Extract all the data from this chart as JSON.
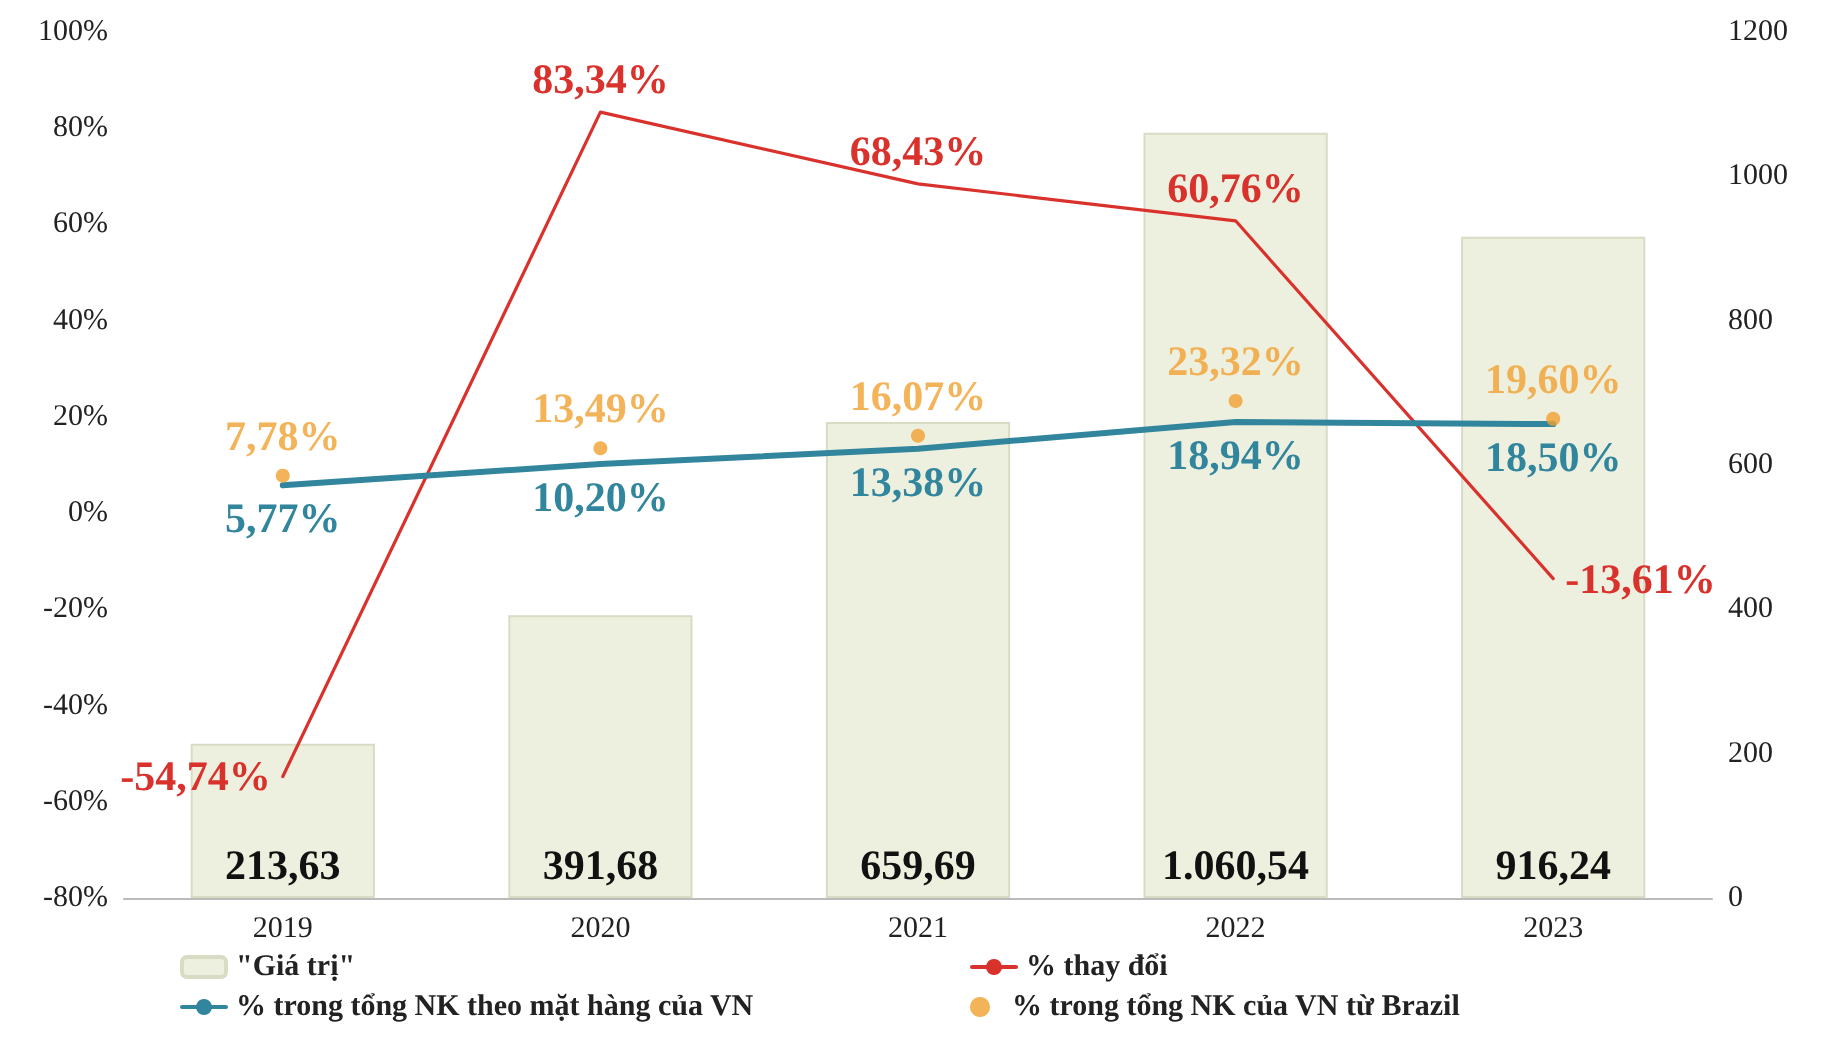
{
  "chart_data": {
    "type": "bar",
    "categories": [
      "2019",
      "2020",
      "2021",
      "2022",
      "2023"
    ],
    "series": [
      {
        "name": "\"Giá trị\"",
        "axis": "y2",
        "color": "#eef0df",
        "values": [
          213.63,
          391.68,
          659.69,
          1060.54,
          916.24
        ],
        "value_labels": [
          "213,63",
          "391,68",
          "659,69",
          "1.060,54",
          "916,24"
        ],
        "marker": "none"
      },
      {
        "name": "% thay đổi",
        "type": "line",
        "axis": "y",
        "color": "#d9312c",
        "values": [
          -54.74,
          83.34,
          68.43,
          60.76,
          -13.61
        ],
        "value_labels": [
          "-54,74%",
          "83,34%",
          "68,43%",
          "60,76%",
          "-13,61%"
        ],
        "marker": "none"
      },
      {
        "name": "% trong tổng NK theo mặt hàng của VN",
        "type": "line",
        "axis": "y",
        "color": "#31859c",
        "values": [
          5.77,
          10.2,
          13.38,
          18.94,
          18.5
        ],
        "value_labels": [
          "5,77%",
          "10,20%",
          "13,38%",
          "18,94%",
          "18,50%"
        ],
        "marker": "none"
      },
      {
        "name": "% trong tổng NK của VN từ Brazil",
        "type": "scatter",
        "axis": "y",
        "color": "#f0a030",
        "values": [
          7.78,
          13.49,
          16.07,
          23.32,
          19.6
        ],
        "value_labels": [
          "7,78%",
          "13,49%",
          "16,07%",
          "23,32%",
          "19,60%"
        ],
        "marker": "circle"
      }
    ],
    "ylim": [
      -80,
      100
    ],
    "yticks": [
      {
        "value": -80,
        "label": "-80%"
      },
      {
        "value": -60,
        "label": "-60%"
      },
      {
        "value": -40,
        "label": "-40%"
      },
      {
        "value": -20,
        "label": "-20%"
      },
      {
        "value": 0,
        "label": "0%"
      },
      {
        "value": 20,
        "label": "20%"
      },
      {
        "value": 40,
        "label": "40%"
      },
      {
        "value": 60,
        "label": "60%"
      },
      {
        "value": 80,
        "label": "80%"
      },
      {
        "value": 100,
        "label": "100%"
      }
    ],
    "y2lim": [
      0,
      1200
    ],
    "y2ticks": [
      0,
      200,
      400,
      600,
      800,
      1000,
      1200
    ],
    "legend": "bottom",
    "grid": false
  }
}
